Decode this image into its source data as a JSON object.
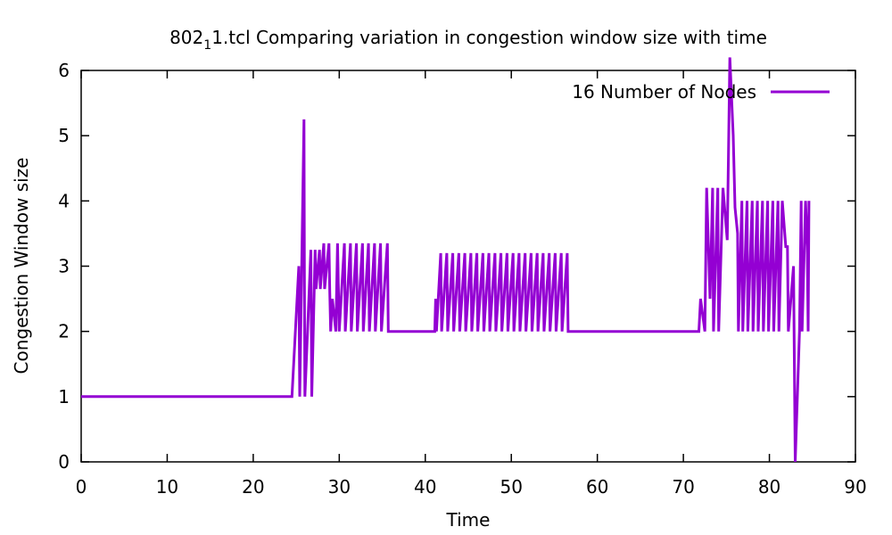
{
  "chart_data": {
    "type": "line",
    "title": "802",
    "title_sub": "1",
    "title_rest": "1.tcl Comparing variation in congestion window size with time",
    "xlabel": "Time",
    "ylabel": "Congestion Window size",
    "xlim": [
      0,
      90
    ],
    "ylim": [
      0,
      6
    ],
    "xticks": [
      0,
      10,
      20,
      30,
      40,
      50,
      60,
      70,
      80,
      90
    ],
    "yticks": [
      0,
      1,
      2,
      3,
      4,
      5,
      6
    ],
    "grid": false,
    "legend_position": "top-right",
    "series": [
      {
        "name": "16 Number of Nodes",
        "color": "#9400D3",
        "points": [
          [
            0,
            1
          ],
          [
            24.5,
            1
          ],
          [
            25.3,
            3
          ],
          [
            25.4,
            1
          ],
          [
            25.9,
            5.25
          ],
          [
            25.95,
            2.7
          ],
          [
            26.0,
            1
          ],
          [
            26.7,
            3.25
          ],
          [
            26.8,
            1
          ],
          [
            27.2,
            3.25
          ],
          [
            27.3,
            2.65
          ],
          [
            27.7,
            3.25
          ],
          [
            27.8,
            2.65
          ],
          [
            28.2,
            3.35
          ],
          [
            28.3,
            2.65
          ],
          [
            28.8,
            3.35
          ],
          [
            28.9,
            2.6
          ],
          [
            29.0,
            2.0
          ],
          [
            29.2,
            2.5
          ],
          [
            29.6,
            2.0
          ],
          [
            29.8,
            3.35
          ],
          [
            30.0,
            2.0
          ],
          [
            30.6,
            3.35
          ],
          [
            30.7,
            2.0
          ],
          [
            31.3,
            3.35
          ],
          [
            31.4,
            2.0
          ],
          [
            32.0,
            3.35
          ],
          [
            32.1,
            2.0
          ],
          [
            32.7,
            3.35
          ],
          [
            32.8,
            2.0
          ],
          [
            33.4,
            3.35
          ],
          [
            33.5,
            2.0
          ],
          [
            34.1,
            3.35
          ],
          [
            34.2,
            2.0
          ],
          [
            34.8,
            3.35
          ],
          [
            34.9,
            2.0
          ],
          [
            35.6,
            3.35
          ],
          [
            35.7,
            2.0
          ],
          [
            41.1,
            2.0
          ],
          [
            41.2,
            2.5
          ],
          [
            41.3,
            2.0
          ],
          [
            41.8,
            3.2
          ],
          [
            41.9,
            2.0
          ],
          [
            42.5,
            3.2
          ],
          [
            42.6,
            2.0
          ],
          [
            43.2,
            3.2
          ],
          [
            43.3,
            2.0
          ],
          [
            43.9,
            3.2
          ],
          [
            44.0,
            2.0
          ],
          [
            44.6,
            3.2
          ],
          [
            44.7,
            2.0
          ],
          [
            45.3,
            3.2
          ],
          [
            45.4,
            2.0
          ],
          [
            46.0,
            3.2
          ],
          [
            46.1,
            2.0
          ],
          [
            46.7,
            3.2
          ],
          [
            46.8,
            2.0
          ],
          [
            47.4,
            3.2
          ],
          [
            47.5,
            2.0
          ],
          [
            48.1,
            3.2
          ],
          [
            48.2,
            2.0
          ],
          [
            48.8,
            3.2
          ],
          [
            48.9,
            2.0
          ],
          [
            49.5,
            3.2
          ],
          [
            49.6,
            2.0
          ],
          [
            50.2,
            3.2
          ],
          [
            50.3,
            2.0
          ],
          [
            50.9,
            3.2
          ],
          [
            51.0,
            2.0
          ],
          [
            51.6,
            3.2
          ],
          [
            51.7,
            2.0
          ],
          [
            52.3,
            3.2
          ],
          [
            52.4,
            2.0
          ],
          [
            53.0,
            3.2
          ],
          [
            53.1,
            2.0
          ],
          [
            53.7,
            3.2
          ],
          [
            53.8,
            2.0
          ],
          [
            54.4,
            3.2
          ],
          [
            54.5,
            2.0
          ],
          [
            55.1,
            3.2
          ],
          [
            55.2,
            2.0
          ],
          [
            55.8,
            3.2
          ],
          [
            55.9,
            2.0
          ],
          [
            56.5,
            3.2
          ],
          [
            56.6,
            2.0
          ],
          [
            71.8,
            2.0
          ],
          [
            72.0,
            2.5
          ],
          [
            72.5,
            2.0
          ],
          [
            72.7,
            4.2
          ],
          [
            73.1,
            2.5
          ],
          [
            73.4,
            4.2
          ],
          [
            73.5,
            2.0
          ],
          [
            74.0,
            4.2
          ],
          [
            74.1,
            2.0
          ],
          [
            74.6,
            4.2
          ],
          [
            75.1,
            3.4
          ],
          [
            75.4,
            6.2
          ],
          [
            75.8,
            5.0
          ],
          [
            76.0,
            3.9
          ],
          [
            76.3,
            3.5
          ],
          [
            76.4,
            2.0
          ],
          [
            76.8,
            4.0
          ],
          [
            76.9,
            2.0
          ],
          [
            77.4,
            4.0
          ],
          [
            77.5,
            2.0
          ],
          [
            78.0,
            4.0
          ],
          [
            78.1,
            2.0
          ],
          [
            78.6,
            4.0
          ],
          [
            78.7,
            2.0
          ],
          [
            79.2,
            4.0
          ],
          [
            79.3,
            2.0
          ],
          [
            79.8,
            4.0
          ],
          [
            79.9,
            2.0
          ],
          [
            80.4,
            4.0
          ],
          [
            80.5,
            2.0
          ],
          [
            81.0,
            4.0
          ],
          [
            81.1,
            2.0
          ],
          [
            81.5,
            4.0
          ],
          [
            81.9,
            3.3
          ],
          [
            82.1,
            3.3
          ],
          [
            82.2,
            2.0
          ],
          [
            82.8,
            3.0
          ],
          [
            83.0,
            0.0
          ],
          [
            83.5,
            2.0
          ],
          [
            83.7,
            4.0
          ],
          [
            83.8,
            2.0
          ],
          [
            84.2,
            4.0
          ],
          [
            84.4,
            3.3
          ],
          [
            84.5,
            2.0
          ],
          [
            84.6,
            4.0
          ]
        ]
      }
    ]
  }
}
